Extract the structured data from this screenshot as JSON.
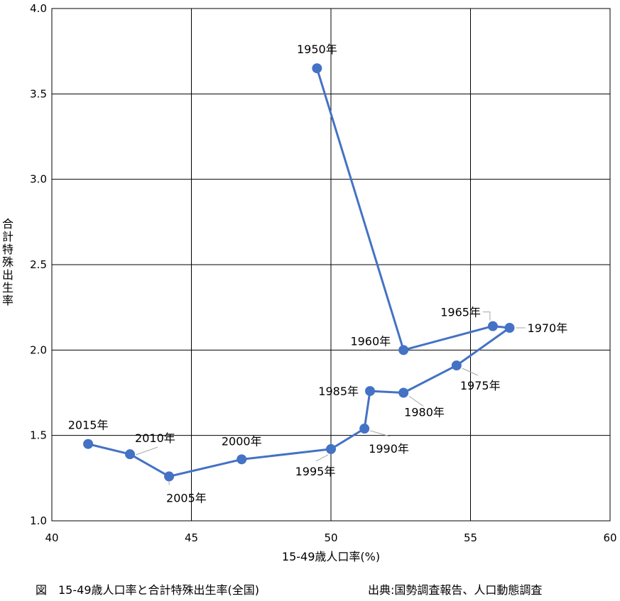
{
  "chart_data": {
    "type": "line",
    "xlabel": "15-49歳人口率(%)",
    "ylabel": "合計特殊出生率",
    "xlim": [
      40,
      60
    ],
    "ylim": [
      1.0,
      4.0
    ],
    "x_ticks": [
      "40",
      "45",
      "50",
      "55",
      "60"
    ],
    "y_ticks": [
      "1.0",
      "1.5",
      "2.0",
      "2.5",
      "3.0",
      "3.5",
      "4.0"
    ],
    "grid": true,
    "series": [
      {
        "color": "#4472c4",
        "points": [
          {
            "label": "1950年",
            "x": 49.5,
            "y": 3.65
          },
          {
            "label": "1960年",
            "x": 52.6,
            "y": 2.0
          },
          {
            "label": "1965年",
            "x": 55.8,
            "y": 2.14
          },
          {
            "label": "1970年",
            "x": 56.4,
            "y": 2.13
          },
          {
            "label": "1975年",
            "x": 54.5,
            "y": 1.91
          },
          {
            "label": "1980年",
            "x": 52.6,
            "y": 1.75
          },
          {
            "label": "1985年",
            "x": 51.4,
            "y": 1.76
          },
          {
            "label": "1990年",
            "x": 51.2,
            "y": 1.54
          },
          {
            "label": "1995年",
            "x": 50.0,
            "y": 1.42
          },
          {
            "label": "2000年",
            "x": 46.8,
            "y": 1.36
          },
          {
            "label": "2005年",
            "x": 44.2,
            "y": 1.26
          },
          {
            "label": "2010年",
            "x": 42.8,
            "y": 1.39
          },
          {
            "label": "2015年",
            "x": 41.3,
            "y": 1.45
          }
        ]
      }
    ]
  },
  "caption": "図　15-49歳人口率と合計特殊出生率(全国)",
  "source": "出典:国勢調査報告、人口動態調査"
}
